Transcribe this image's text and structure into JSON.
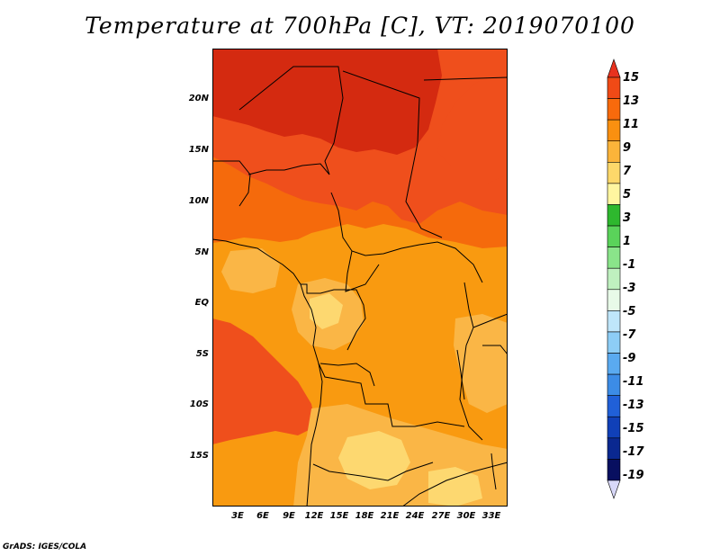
{
  "title": "Temperature at 700hPa [C], VT: 2019070100",
  "credit": "GrADS: IGES/COLA",
  "axes": {
    "lat_labels": [
      "20N",
      "15N",
      "10N",
      "5N",
      "EQ",
      "5S",
      "10S",
      "15S"
    ],
    "lon_labels": [
      "3E",
      "6E",
      "9E",
      "12E",
      "15E",
      "18E",
      "21E",
      "24E",
      "27E",
      "30E",
      "33E"
    ]
  },
  "colorbar": {
    "labels": [
      "15",
      "13",
      "11",
      "9",
      "7",
      "5",
      "3",
      "1",
      "-1",
      "-3",
      "-5",
      "-7",
      "-9",
      "-11",
      "-13",
      "-15",
      "-17",
      "-19"
    ],
    "colors": [
      "#e8321e",
      "#f04a16",
      "#f86a0c",
      "#fa9010",
      "#fbb43a",
      "#fdd86a",
      "#fff6a0",
      "#2eb82e",
      "#5ad35a",
      "#8ae48a",
      "#bff0bf",
      "#e8fae8",
      "#bfe6fa",
      "#8dcdf6",
      "#5aaaf0",
      "#3c8ce6",
      "#2060d8",
      "#1040b8",
      "#0a2890",
      "#080f60",
      "#d8d8f8"
    ]
  },
  "fields": {
    "colors": {
      "hot": "#d42a10",
      "warm": "#ef4f1c",
      "orange": "#f56a0c",
      "amber": "#f99a10",
      "light": "#fab646",
      "pale": "#fdd870",
      "border": "#000000"
    }
  }
}
